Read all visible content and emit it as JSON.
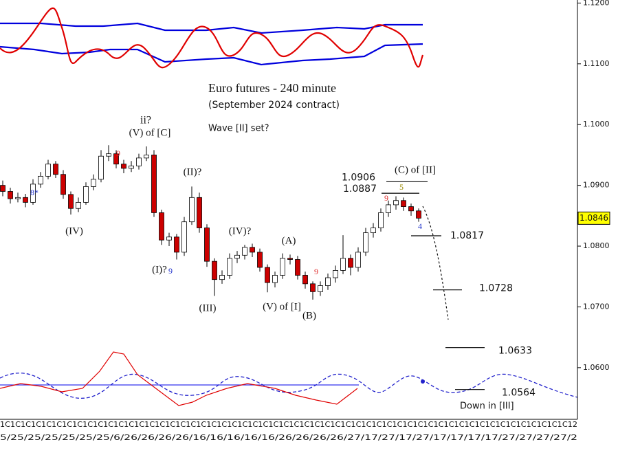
{
  "chart_data": {
    "type": "candlestick",
    "title": "Euro futures - 240 minute",
    "subtitle": "(September 2024 contract)",
    "annotations": [
      "Wave [II] set?",
      "Down in [III]"
    ],
    "wave_labels": [
      "ii?",
      "(V) of [C]",
      "(IV)",
      "(II)?",
      "(I)?",
      "9",
      "(III)",
      "(IV)?",
      "(V) of [I]",
      "(A)",
      "(B)",
      "(C) of [II]",
      "9",
      "9",
      "9",
      "5",
      "4",
      "8*"
    ],
    "ylim": [
      1.0515,
      1.1205
    ],
    "yticks": [
      {
        "value": 1.06,
        "label": "1.0600"
      },
      {
        "value": 1.07,
        "label": "1.0700"
      },
      {
        "value": 1.08,
        "label": "1.0800"
      },
      {
        "value": 1.09,
        "label": "1.0900"
      },
      {
        "value": 1.1,
        "label": "1.1000"
      },
      {
        "value": 1.11,
        "label": "1.1100"
      },
      {
        "value": 1.12,
        "label": "1.1200"
      }
    ],
    "last_price": 1.0846,
    "levels": [
      1.0906,
      1.0887,
      1.0817,
      1.0728,
      1.0633,
      1.0564
    ],
    "up_color": "#ffffff",
    "down_color": "#cc0000",
    "x_axis_text": [
      "1C1C1C1C1C1C1C1C1C1C1C1C1C1C1C1C1C1C1C1C1C1C1C1C1C1C1C1C1C1C1C1C1C1C1C1C1C1C1C1C1C1C1C1C1C1C1C1C1C1C1C1C1C1C1C12",
      "5/25/25/25/25/25/25/6/26/26/26/26/16/16/16/16/16/26/26/26/26/27/17/27/17/27/17/17/17/17/27/27/27/27/2"
    ],
    "ohlc": [
      [
        1.09,
        1.0908,
        1.0882,
        1.089
      ],
      [
        1.089,
        1.0896,
        1.087,
        1.0878
      ],
      [
        1.0878,
        1.0888,
        1.0872,
        1.088
      ],
      [
        1.088,
        1.0886,
        1.0864,
        1.0872
      ],
      [
        1.0872,
        1.091,
        1.0868,
        1.0902
      ],
      [
        1.0902,
        1.0922,
        1.0896,
        1.0915
      ],
      [
        1.0915,
        1.0942,
        1.091,
        1.0935
      ],
      [
        1.0935,
        1.094,
        1.0912,
        1.0918
      ],
      [
        1.0918,
        1.0925,
        1.0878,
        1.0885
      ],
      [
        1.0885,
        1.089,
        1.0852,
        1.0862
      ],
      [
        1.0862,
        1.088,
        1.0856,
        1.0872
      ],
      [
        1.0872,
        1.0905,
        1.0868,
        1.0898
      ],
      [
        1.0898,
        1.0918,
        1.0892,
        1.091
      ],
      [
        1.091,
        1.0958,
        1.0905,
        1.0948
      ],
      [
        1.0948,
        1.0966,
        1.094,
        1.0952
      ],
      [
        1.0952,
        1.0958,
        1.0928,
        1.0935
      ],
      [
        1.0935,
        1.0942,
        1.092,
        1.0928
      ],
      [
        1.0928,
        1.094,
        1.0922,
        1.0932
      ],
      [
        1.0932,
        1.0952,
        1.0926,
        1.0945
      ],
      [
        1.0945,
        1.0964,
        1.094,
        1.095
      ],
      [
        1.095,
        1.0958,
        1.0848,
        1.0855
      ],
      [
        1.0855,
        1.086,
        1.0802,
        1.081
      ],
      [
        1.081,
        1.0822,
        1.08,
        1.0815
      ],
      [
        1.0815,
        1.082,
        1.0778,
        1.079
      ],
      [
        1.079,
        1.0848,
        1.0784,
        1.084
      ],
      [
        1.084,
        1.0898,
        1.0835,
        1.088
      ],
      [
        1.088,
        1.0888,
        1.0822,
        1.083
      ],
      [
        1.083,
        1.0836,
        1.0766,
        1.0775
      ],
      [
        1.0775,
        1.078,
        1.0718,
        1.0745
      ],
      [
        1.0745,
        1.076,
        1.0738,
        1.0752
      ],
      [
        1.0752,
        1.0788,
        1.0746,
        1.078
      ],
      [
        1.078,
        1.0792,
        1.0772,
        1.0785
      ],
      [
        1.0785,
        1.0802,
        1.0778,
        1.0798
      ],
      [
        1.0798,
        1.0804,
        1.0782,
        1.079
      ],
      [
        1.079,
        1.0796,
        1.0758,
        1.0765
      ],
      [
        1.0765,
        1.077,
        1.0724,
        1.074
      ],
      [
        1.074,
        1.0758,
        1.0732,
        1.0752
      ],
      [
        1.0752,
        1.0788,
        1.0746,
        1.078
      ],
      [
        1.078,
        1.0786,
        1.077,
        1.0778
      ],
      [
        1.0778,
        1.0784,
        1.0745,
        1.0752
      ],
      [
        1.0752,
        1.0758,
        1.073,
        1.0738
      ],
      [
        1.0738,
        1.0742,
        1.0712,
        1.0725
      ],
      [
        1.0725,
        1.0742,
        1.0718,
        1.0735
      ],
      [
        1.0735,
        1.0755,
        1.0728,
        1.0748
      ],
      [
        1.0748,
        1.0768,
        1.074,
        1.076
      ],
      [
        1.076,
        1.0818,
        1.0754,
        1.078
      ],
      [
        1.078,
        1.0786,
        1.0752,
        1.0765
      ],
      [
        1.0765,
        1.0798,
        1.0758,
        1.079
      ],
      [
        1.079,
        1.083,
        1.0784,
        1.0822
      ],
      [
        1.0822,
        1.0838,
        1.0814,
        1.083
      ],
      [
        1.083,
        1.0862,
        1.0824,
        1.0855
      ],
      [
        1.0855,
        1.0875,
        1.0848,
        1.0868
      ],
      [
        1.0868,
        1.0882,
        1.086,
        1.0875
      ],
      [
        1.0875,
        1.088,
        1.0858,
        1.0865
      ],
      [
        1.0865,
        1.087,
        1.085,
        1.0858
      ],
      [
        1.0858,
        1.0862,
        1.084,
        1.0846
      ]
    ]
  }
}
